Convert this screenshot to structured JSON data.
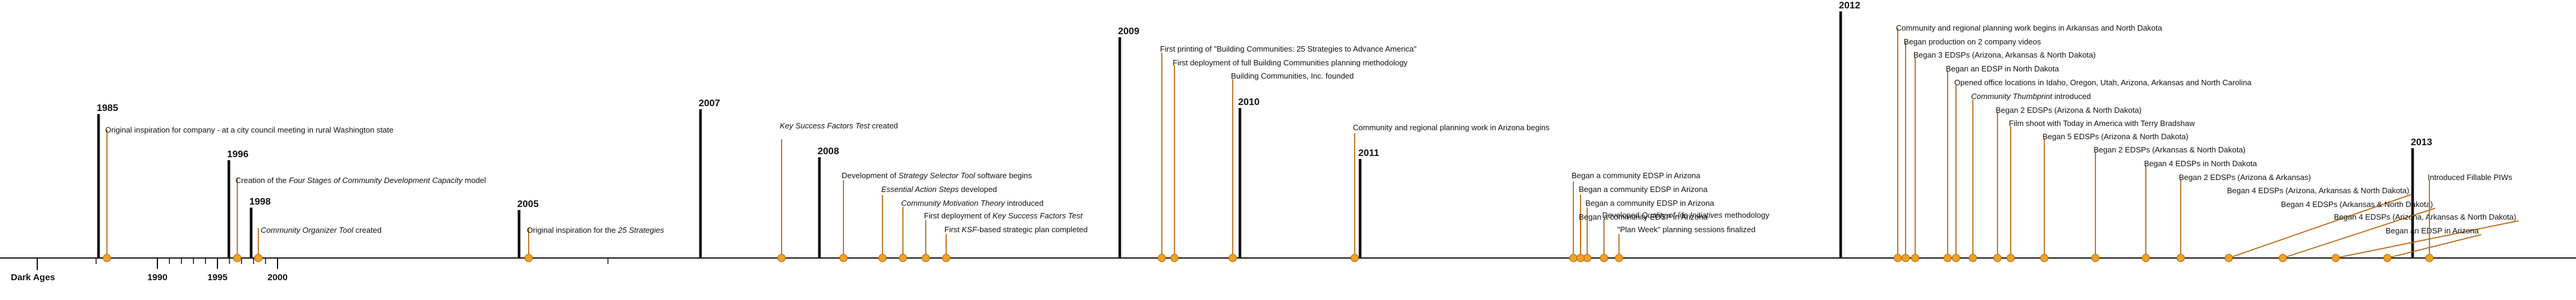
{
  "timeline": {
    "axis_labels": [
      "Dark Ages",
      "1990",
      "1995",
      "2000"
    ],
    "years": [
      "1985",
      "1996",
      "1998",
      "2005",
      "2007",
      "2008",
      "2009",
      "2010",
      "2011",
      "2012",
      "2013"
    ],
    "events": [
      {
        "label": "Original inspiration for company - at a city council meeting in rural Washington state"
      },
      {
        "label": "Creation of the Four Stages of Community Development Capacity model",
        "italic": "Four Stages of Community Development Capacity"
      },
      {
        "label": "Community Organizer Tool created",
        "italic": "Community Organizer Tool"
      },
      {
        "label": "Original inspiration for the 25 Strategies",
        "italic": "25 Strategies"
      },
      {
        "label": "Key Success Factors Test created",
        "italic": "Key Success Factors Test"
      },
      {
        "label": "Development of Strategy Selector Tool software begins",
        "italic": "Strategy Selector Tool"
      },
      {
        "label": "Essential Action Steps developed",
        "italic": "Essential Action Steps"
      },
      {
        "label": "Community Motivation Theory introduced",
        "italic": "Community Motivation Theory"
      },
      {
        "label": "First deployment of Key Success Factors Test",
        "italic": "Key Success Factors Test"
      },
      {
        "label": "First KSF-based strategic plan completed",
        "italic": "KSF"
      },
      {
        "label": "First printing of \"Building Communities: 25 Strategies to Advance America\""
      },
      {
        "label": "First deployment of full Building Communities planning methodology"
      },
      {
        "label": "Building Communities, Inc. founded"
      },
      {
        "label": "Community and regional planning work in Arizona begins"
      },
      {
        "label": "Began a community EDSP in Arizona"
      },
      {
        "label": "Began a community EDSP in Arizona"
      },
      {
        "label": "Began a community EDSP in Arizona"
      },
      {
        "label": "Began a community EDSP in Arizona"
      },
      {
        "label": "Developed Quality-of-life Initiatives methodology",
        "italic": "Quality-of-life Initiatives"
      },
      {
        "label": "\"Plan Week\" planning sessions finalized"
      },
      {
        "label": "Community and regional planning work begins in Arkansas and North Dakota"
      },
      {
        "label": "Began production on 2 company videos"
      },
      {
        "label": "Began 3 EDSPs (Arizona, Arkansas & North Dakota)"
      },
      {
        "label": "Began an EDSP in North Dakota"
      },
      {
        "label": "Opened office locations in Idaho, Oregon, Utah, Arizona, Arkansas and North Carolina"
      },
      {
        "label": "Community Thumbprint introduced",
        "italic": "Community Thumbprint"
      },
      {
        "label": "Began 2 EDSPs (Arizona & North Dakota)"
      },
      {
        "label": "Film shoot with Today in America with Terry Bradshaw"
      },
      {
        "label": "Began 5 EDSPs (Arizona & North Dakota)"
      },
      {
        "label": "Began 2 EDSPs (Arkansas & North Dakota)"
      },
      {
        "label": "Began 4 EDSPs in North Dakota"
      },
      {
        "label": "Began 2 EDSPs (Arizona & Arkansas)"
      },
      {
        "label": "Began 4 EDSPs (Arizona, Arkansas & North Dakota)"
      },
      {
        "label": "Began 4 EDSPs (Arkansas & North Dakota)"
      },
      {
        "label": "Began 4 EDSPs (Arizona, Arkansas & North Dakota)"
      },
      {
        "label": "Began an EDSP in Arizona"
      },
      {
        "label": "Introduced Fillable PIWs"
      }
    ]
  }
}
